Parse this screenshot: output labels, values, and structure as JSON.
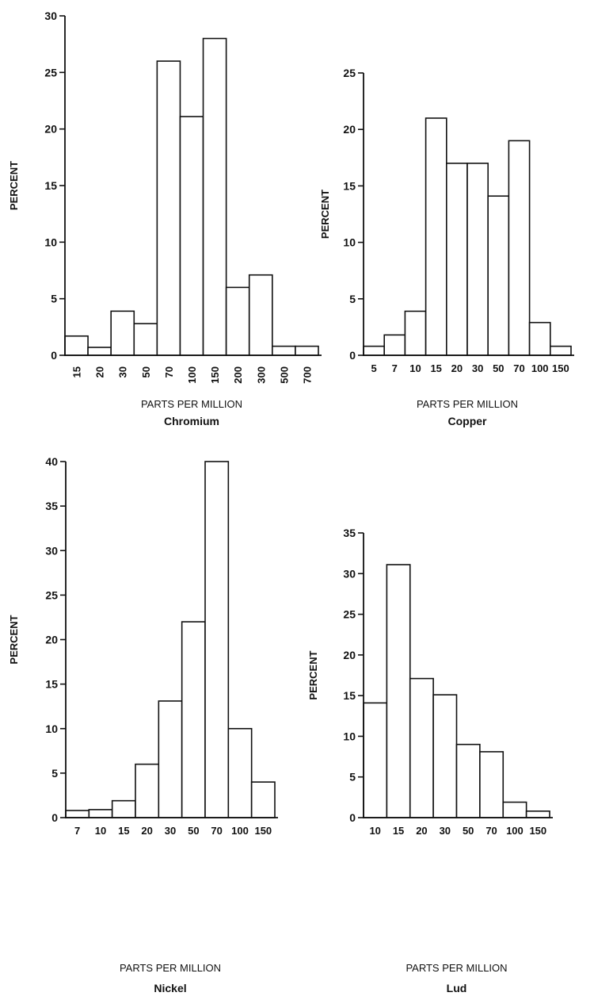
{
  "chart_data": [
    {
      "type": "bar",
      "title": "Chromium",
      "xlabel": "PARTS PER MILLION",
      "ylabel": "PERCENT",
      "categories": [
        "15",
        "20",
        "30",
        "50",
        "70",
        "100",
        "150",
        "200",
        "300",
        "500",
        "700"
      ],
      "values": [
        1.7,
        0.7,
        3.9,
        2.8,
        26,
        21.1,
        28,
        6,
        7.1,
        0.8,
        0.8
      ],
      "ylim": [
        0,
        30
      ],
      "yticks": [
        "0",
        "5",
        "10",
        "15",
        "20",
        "25",
        "30"
      ],
      "x_label_rotation": "vertical",
      "grid": false
    },
    {
      "type": "bar",
      "title": "Copper",
      "xlabel": "PARTS PER MILLION",
      "ylabel": "PERCENT",
      "categories": [
        "5",
        "7",
        "10",
        "15",
        "20",
        "30",
        "50",
        "70",
        "100",
        "150"
      ],
      "values": [
        0.8,
        1.8,
        3.9,
        21,
        17,
        17,
        14.1,
        19,
        2.9,
        0.8
      ],
      "ylim": [
        0,
        25
      ],
      "yticks": [
        "0",
        "5",
        "10",
        "15",
        "20",
        "25"
      ],
      "grid": false
    },
    {
      "type": "bar",
      "title": "Nickel",
      "xlabel": "PARTS PER MILLION",
      "ylabel": "PERCENT",
      "categories": [
        "7",
        "10",
        "15",
        "20",
        "30",
        "50",
        "70",
        "100",
        "150"
      ],
      "values": [
        0.8,
        0.9,
        1.9,
        6,
        13.1,
        22,
        40,
        10,
        4
      ],
      "ylim": [
        0,
        40
      ],
      "yticks": [
        "0",
        "5",
        "10",
        "15",
        "20",
        "25",
        "30",
        "35",
        "40"
      ],
      "grid": false
    },
    {
      "type": "bar",
      "title": "Lud",
      "xlabel": "PARTS PER MILLION",
      "ylabel": "PERCENT",
      "categories": [
        "10",
        "15",
        "20",
        "30",
        "50",
        "70",
        "100",
        "150"
      ],
      "values": [
        14.1,
        31.1,
        17.1,
        15.1,
        9,
        8.1,
        1.9,
        0.8
      ],
      "ylim": [
        0,
        35
      ],
      "yticks": [
        "0",
        "5",
        "10",
        "15",
        "20",
        "25",
        "30",
        "35"
      ],
      "grid": false
    }
  ]
}
